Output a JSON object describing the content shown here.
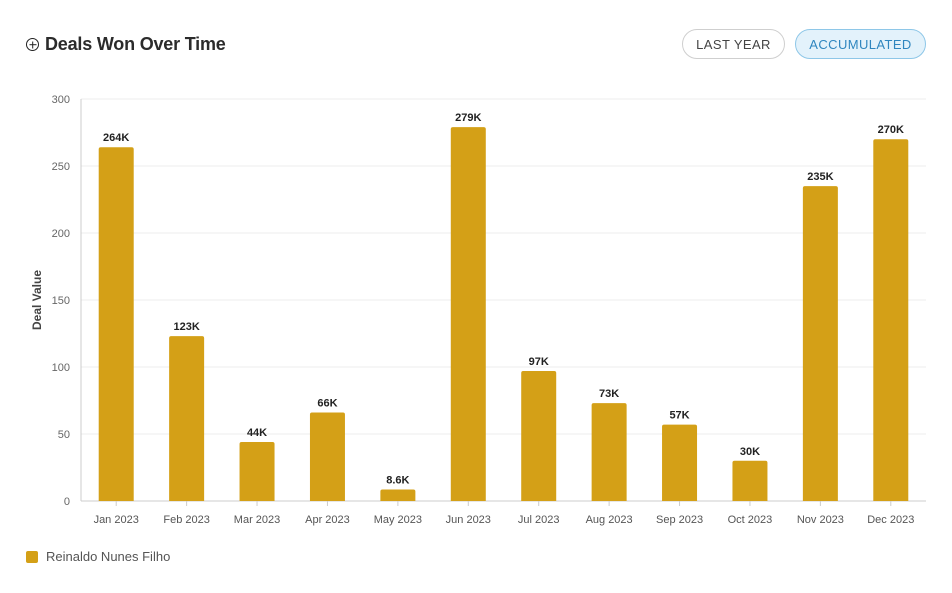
{
  "header": {
    "icon": "plus-circle-icon",
    "title": "Deals Won Over Time"
  },
  "buttons": {
    "last_year": "LAST YEAR",
    "accumulated": "ACCUMULATED"
  },
  "colors": {
    "bar": "#d4a017",
    "active_button_bg": "#e3f2fb",
    "active_button_text": "#2f86bf"
  },
  "chart_data": {
    "type": "bar",
    "categories": [
      "Jan 2023",
      "Feb 2023",
      "Mar 2023",
      "Apr 2023",
      "May 2023",
      "Jun 2023",
      "Jul 2023",
      "Aug 2023",
      "Sep 2023",
      "Oct 2023",
      "Nov 2023",
      "Dec 2023"
    ],
    "values": [
      264,
      123,
      44,
      66,
      8.6,
      279,
      97,
      73,
      57,
      30,
      235,
      270
    ],
    "data_labels": [
      "264K",
      "123K",
      "44K",
      "66K",
      "8.6K",
      "279K",
      "97K",
      "73K",
      "57K",
      "30K",
      "235K",
      "270K"
    ],
    "ylabel": "Deal Value",
    "ylim": [
      0,
      300
    ],
    "yticks": [
      0,
      50,
      100,
      150,
      200,
      250,
      300
    ],
    "grid": true,
    "legend": "bottom-left",
    "series": [
      {
        "name": "Reinaldo Nunes Filho",
        "values": [
          264,
          123,
          44,
          66,
          8.6,
          279,
          97,
          73,
          57,
          30,
          235,
          270
        ]
      }
    ]
  }
}
